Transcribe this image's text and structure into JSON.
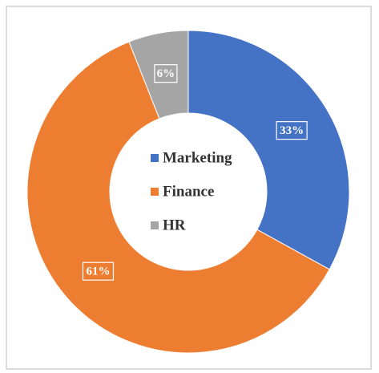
{
  "chart_data": {
    "type": "pie",
    "categories": [
      "Marketing",
      "Finance",
      "HR"
    ],
    "values": [
      33,
      61,
      6
    ],
    "value_labels": [
      "33%",
      "61%",
      "6%"
    ],
    "colors": [
      "#4472c4",
      "#ed7d31",
      "#a5a5a5"
    ],
    "legend": "center"
  }
}
